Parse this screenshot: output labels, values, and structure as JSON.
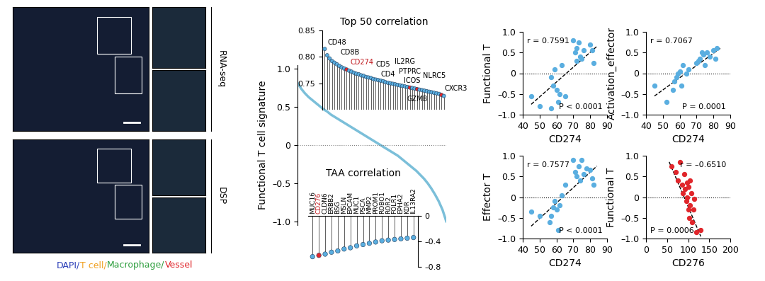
{
  "chart_data": [
    {
      "type": "line",
      "y_label": "Functional T cell signature",
      "tick_labels": "y",
      "color": "#7bbfd9",
      "x": [
        0,
        1,
        2,
        3,
        4,
        5,
        6,
        7,
        8,
        9,
        10,
        11,
        12,
        13,
        14,
        15,
        16,
        17,
        18,
        19,
        20,
        21,
        22,
        23,
        24,
        25,
        26,
        27,
        28,
        29,
        30,
        31,
        32,
        33,
        34,
        35,
        36,
        37,
        38,
        39,
        40
      ],
      "values": [
        0.82,
        0.74,
        0.68,
        0.63,
        0.59,
        0.55,
        0.51,
        0.47,
        0.44,
        0.4,
        0.37,
        0.34,
        0.31,
        0.28,
        0.25,
        0.22,
        0.19,
        0.16,
        0.13,
        0.1,
        0.07,
        0.04,
        0.01,
        -0.02,
        -0.05,
        -0.08,
        -0.11,
        -0.14,
        -0.18,
        -0.22,
        -0.26,
        -0.3,
        -0.34,
        -0.39,
        -0.44,
        -0.5,
        -0.57,
        -0.65,
        -0.74,
        -0.85,
        -1.0
      ],
      "reference_line": 0,
      "ylim": [
        -1.05,
        1.05
      ],
      "yticks": [
        {
          "value": -1.0,
          "label": "–1.0"
        },
        {
          "value": -0.5,
          "label": "–0.5"
        },
        0,
        0.5,
        {
          "value": 1.0,
          "label": "1.0"
        }
      ]
    },
    {
      "type": "lollipop",
      "title": "Top 50 correlation",
      "tick_labels": "y",
      "categories": [
        "CD48",
        null,
        null,
        null,
        "CD8B",
        null,
        null,
        null,
        null,
        "CD274",
        null,
        null,
        null,
        null,
        null,
        null,
        null,
        null,
        null,
        null,
        null,
        "CD5",
        null,
        "CD4",
        null,
        null,
        null,
        null,
        null,
        null,
        null,
        null,
        null,
        "IL2RG",
        null,
        "PTPRC",
        "ICOS",
        null,
        "GZMB",
        null,
        null,
        null,
        null,
        null,
        null,
        "NLRC5",
        null,
        null,
        "CXCR3",
        null
      ],
      "values": [
        0.815,
        0.803,
        0.797,
        0.792,
        0.789,
        0.786,
        0.783,
        0.78,
        0.778,
        0.776,
        0.774,
        0.772,
        0.77,
        0.768,
        0.767,
        0.765,
        0.764,
        0.762,
        0.761,
        0.76,
        0.758,
        0.757,
        0.756,
        0.755,
        0.754,
        0.752,
        0.751,
        0.75,
        0.749,
        0.748,
        0.747,
        0.746,
        0.745,
        0.744,
        0.743,
        0.742,
        0.741,
        0.74,
        0.739,
        0.738,
        0.737,
        0.736,
        0.735,
        0.734,
        0.733,
        0.732,
        0.731,
        0.73,
        0.728,
        0.726
      ],
      "colors": [
        "#5aaee0",
        "#5aaee0",
        "#5aaee0",
        "#5aaee0",
        "#5aaee0",
        "#5aaee0",
        "#5aaee0",
        "#5aaee0",
        "#5aaee0",
        "#e0262b",
        "#5aaee0",
        "#5aaee0",
        "#5aaee0",
        "#5aaee0",
        "#5aaee0",
        "#5aaee0",
        "#5aaee0",
        "#5aaee0",
        "#5aaee0",
        "#5aaee0",
        "#5aaee0",
        "#5aaee0",
        "#5aaee0",
        "#5aaee0",
        "#5aaee0",
        "#5aaee0",
        "#5aaee0",
        "#5aaee0",
        "#5aaee0",
        "#5aaee0",
        "#5aaee0",
        "#5aaee0",
        "#5aaee0",
        "#5aaee0",
        "#5aaee0",
        "#e0262b",
        "#5aaee0",
        "#5aaee0",
        "#e0262b",
        "#5aaee0",
        "#5aaee0",
        "#5aaee0",
        "#5aaee0",
        "#5aaee0",
        "#5aaee0",
        "#5aaee0",
        "#5aaee0",
        "#5aaee0",
        "#e0262b",
        "#5aaee0"
      ],
      "ylim": [
        0.7,
        0.85
      ],
      "yticks": [
        0.75,
        {
          "value": 0.8,
          "label": "0.80"
        },
        0.85
      ]
    },
    {
      "type": "lollipop",
      "title": "TAA correlation",
      "categories": [
        "MUC16",
        "CD276",
        "CLDN6",
        "ERBB2",
        "BSG",
        "MSLN",
        "EPCAM",
        "MUC1",
        "PSCA",
        "MMP2",
        "PROM1",
        "ROBO1",
        "ROR2",
        "FOLR1",
        "EPHA2",
        "KDR",
        "IL13RA2"
      ],
      "values": [
        -0.64,
        -0.62,
        -0.6,
        -0.57,
        -0.55,
        -0.52,
        -0.5,
        -0.47,
        -0.45,
        -0.43,
        -0.41,
        -0.39,
        -0.38,
        -0.37,
        -0.36,
        -0.35,
        -0.34
      ],
      "colors": [
        "#5aaee0",
        "#e0262b",
        "#5aaee0",
        "#5aaee0",
        "#5aaee0",
        "#5aaee0",
        "#5aaee0",
        "#5aaee0",
        "#5aaee0",
        "#5aaee0",
        "#5aaee0",
        "#5aaee0",
        "#5aaee0",
        "#5aaee0",
        "#5aaee0",
        "#5aaee0",
        "#5aaee0"
      ],
      "ylim": [
        -0.8,
        0
      ],
      "yticks": [
        0,
        {
          "value": -0.4,
          "label": "–0.4"
        },
        {
          "value": -0.8,
          "label": "–0.8"
        }
      ]
    },
    {
      "type": "scatter",
      "x_label": "CD274",
      "y_label": "Functional T",
      "color": "#5aaee0",
      "x": [
        45,
        50,
        57,
        57,
        58,
        60,
        59,
        61,
        62,
        63,
        65,
        70,
        71,
        72,
        72,
        73,
        74,
        75,
        76,
        80,
        81,
        82
      ],
      "values": [
        -0.55,
        -0.8,
        -0.85,
        -0.1,
        -0.3,
        -0.4,
        0.1,
        -0.7,
        -0.5,
        0.2,
        -0.55,
        0.8,
        0.5,
        0.3,
        0.6,
        0.75,
        0.4,
        0.35,
        0.55,
        0.7,
        0.55,
        0.25
      ],
      "fit_line": {
        "x": [
          45,
          84
        ],
        "y": [
          -0.75,
          0.65
        ]
      },
      "reference_line": 0,
      "annotations": [
        "r = 0.7591",
        "P < 0.0001"
      ],
      "xlim": [
        40,
        90
      ],
      "xticks": [
        40,
        50,
        60,
        70,
        80,
        90
      ],
      "ylim": [
        -1.0,
        1.0
      ],
      "yticks": [
        {
          "value": -1.0,
          "label": "–1.0"
        },
        {
          "value": -0.5,
          "label": "–0.5"
        },
        0,
        0.5,
        {
          "value": 1.0,
          "label": "1.0"
        }
      ]
    },
    {
      "type": "scatter",
      "x_label": "CD274",
      "y_label": "Activation_effector",
      "color": "#5aaee0",
      "x": [
        45,
        52,
        56,
        57,
        58,
        59,
        60,
        61,
        62,
        64,
        65,
        70,
        71,
        72,
        73,
        74,
        75,
        76,
        78,
        80,
        81,
        82
      ],
      "values": [
        -0.3,
        -0.7,
        -0.4,
        -0.2,
        -0.1,
        0,
        0.05,
        -0.3,
        0.2,
        0,
        0.1,
        0.25,
        0.3,
        0.35,
        0.5,
        0.45,
        0.2,
        0.5,
        0.4,
        0.55,
        0.35,
        0.6
      ],
      "fit_line": {
        "x": [
          45,
          84
        ],
        "y": [
          -0.55,
          0.6
        ]
      },
      "reference_line": 0,
      "annotations": [
        "r = 0.7067",
        "P = 0.0001"
      ],
      "xlim": [
        40,
        90
      ],
      "xticks": [
        40,
        50,
        60,
        70,
        80,
        90
      ],
      "ylim": [
        -1.0,
        1.0
      ],
      "yticks": [
        {
          "value": -1.0,
          "label": "–1.0"
        },
        {
          "value": -0.5,
          "label": "–0.5"
        },
        0,
        0.5,
        {
          "value": 1.0,
          "label": "1.0"
        }
      ]
    },
    {
      "type": "scatter",
      "x_label": "CD274",
      "y_label": "Effector T",
      "color": "#5aaee0",
      "x": [
        45,
        50,
        56,
        57,
        58,
        59,
        60,
        61,
        62,
        63,
        65,
        70,
        71,
        72,
        73,
        74,
        75,
        76,
        78,
        80,
        81,
        82
      ],
      "values": [
        -0.35,
        -0.45,
        -0.6,
        -0.45,
        -0.25,
        -0.1,
        -0.3,
        -0.8,
        -0.2,
        0.05,
        0.3,
        0.9,
        0.6,
        0.5,
        0.75,
        0.4,
        0.9,
        0.55,
        0.7,
        0.65,
        0.45,
        0.3
      ],
      "fit_line": {
        "x": [
          45,
          84
        ],
        "y": [
          -0.7,
          0.75
        ]
      },
      "reference_line": 0,
      "annotations": [
        "r = 0.7577",
        "P < 0.0001"
      ],
      "xlim": [
        40,
        90
      ],
      "xticks": [
        40,
        50,
        60,
        70,
        80,
        90
      ],
      "ylim": [
        -1.0,
        1.0
      ],
      "yticks": [
        {
          "value": -1.0,
          "label": "–1.0"
        },
        {
          "value": -0.5,
          "label": "–0.5"
        },
        0,
        0.5,
        {
          "value": 1.0,
          "label": "1.0"
        }
      ]
    },
    {
      "type": "scatter",
      "x_label": "CD276",
      "y_label": "Functional T",
      "color": "#e0262b",
      "x": [
        60,
        70,
        75,
        80,
        85,
        88,
        90,
        92,
        95,
        97,
        98,
        100,
        100,
        102,
        104,
        105,
        108,
        110,
        112,
        115,
        120,
        130
      ],
      "values": [
        0.75,
        0.6,
        0.4,
        0.85,
        0.3,
        0.1,
        0.55,
        0.2,
        -0.1,
        0.35,
        0,
        0.25,
        -0.3,
        -0.5,
        -0.2,
        0.4,
        0.1,
        -0.6,
        -0.3,
        -0.05,
        -0.85,
        -0.8
      ],
      "fit_line": {
        "x": [
          55,
          130
        ],
        "y": [
          0.85,
          -0.95
        ]
      },
      "reference_line": 0,
      "annotations": [
        "r = –0.6510",
        "P = 0.0006"
      ],
      "xlim": [
        0,
        200
      ],
      "xticks": [
        0,
        50,
        100,
        150,
        200
      ],
      "ylim": [
        -1.0,
        1.0
      ],
      "yticks": [
        {
          "value": -1.0,
          "label": "–1.0"
        },
        {
          "value": -0.5,
          "label": "–0.5"
        },
        0,
        0.5,
        {
          "value": 1.0,
          "label": "1.0"
        }
      ]
    }
  ],
  "image_panel": {
    "row_labels": [
      "RNA-seq",
      "DSP"
    ],
    "legend": [
      {
        "text": "DAPI/",
        "color": "#2b3fb8"
      },
      {
        "text": "T cell/",
        "color": "#f0a020"
      },
      {
        "text": "Macrophage/",
        "color": "#2e9e3e"
      },
      {
        "text": "Vessel",
        "color": "#e0262b"
      }
    ]
  }
}
